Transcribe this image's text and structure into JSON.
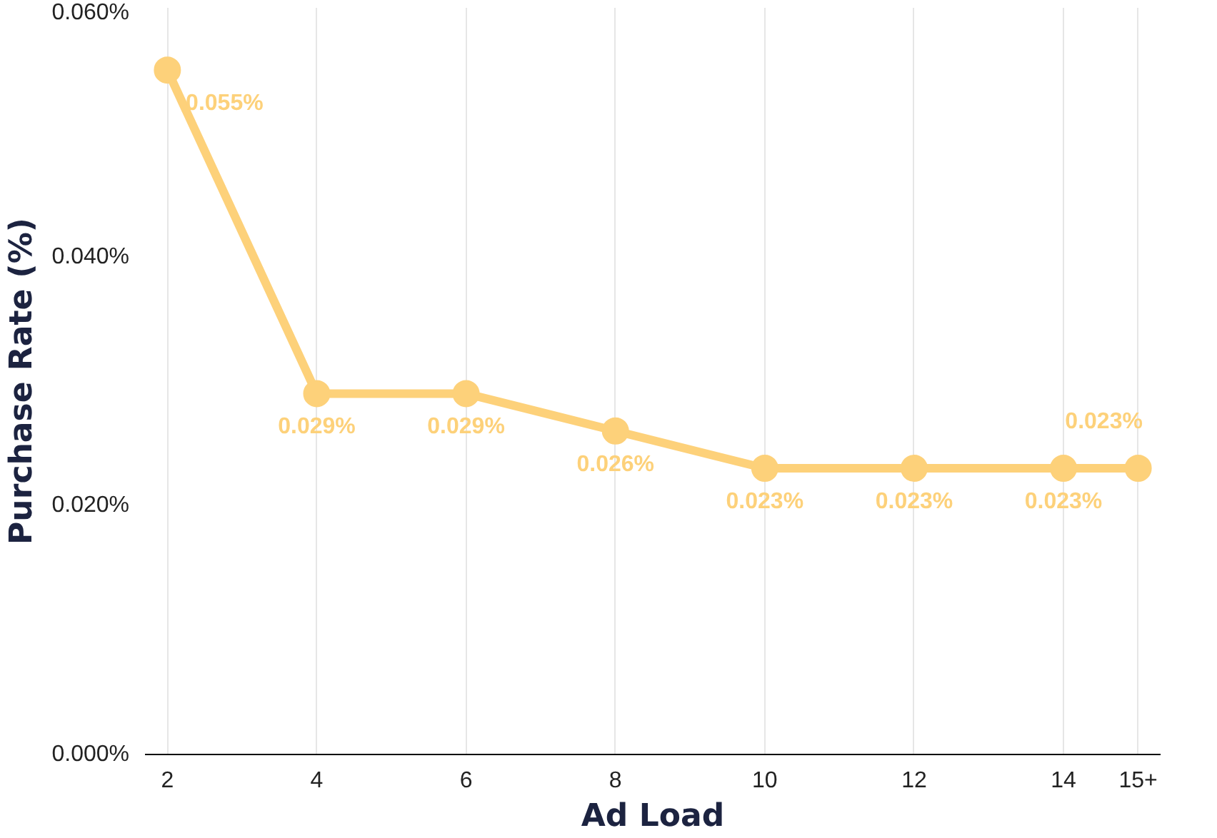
{
  "chart_data": {
    "type": "line",
    "xlabel": "Ad Load",
    "ylabel": "Purchase Rate (%)",
    "x": [
      2,
      4,
      6,
      8,
      10,
      12,
      14,
      15
    ],
    "series": [
      {
        "color": "#fdd17a",
        "values": [
          0.055,
          0.029,
          0.029,
          0.026,
          0.023,
          0.023,
          0.023,
          0.023
        ],
        "value_labels": [
          "0.055%",
          "0.029%",
          "0.029%",
          "0.026%",
          "0.023%",
          "0.023%",
          "0.023%",
          "0.023%"
        ]
      }
    ],
    "xlim": [
      1.7,
      15.3
    ],
    "xticks": [
      2,
      4,
      6,
      8,
      10,
      12,
      14,
      {
        "value": 15,
        "label": "15+"
      }
    ],
    "ylim": [
      0,
      0.06
    ],
    "yticks": [
      {
        "value": 0,
        "label": "0.000%"
      },
      {
        "value": 0.02,
        "label": "0.020%"
      },
      {
        "value": 0.04,
        "label": "0.040%"
      },
      {
        "value": 0.06,
        "label": "0.060%"
      }
    ],
    "grid": "x",
    "marker": "circle",
    "line_style": "solid"
  }
}
